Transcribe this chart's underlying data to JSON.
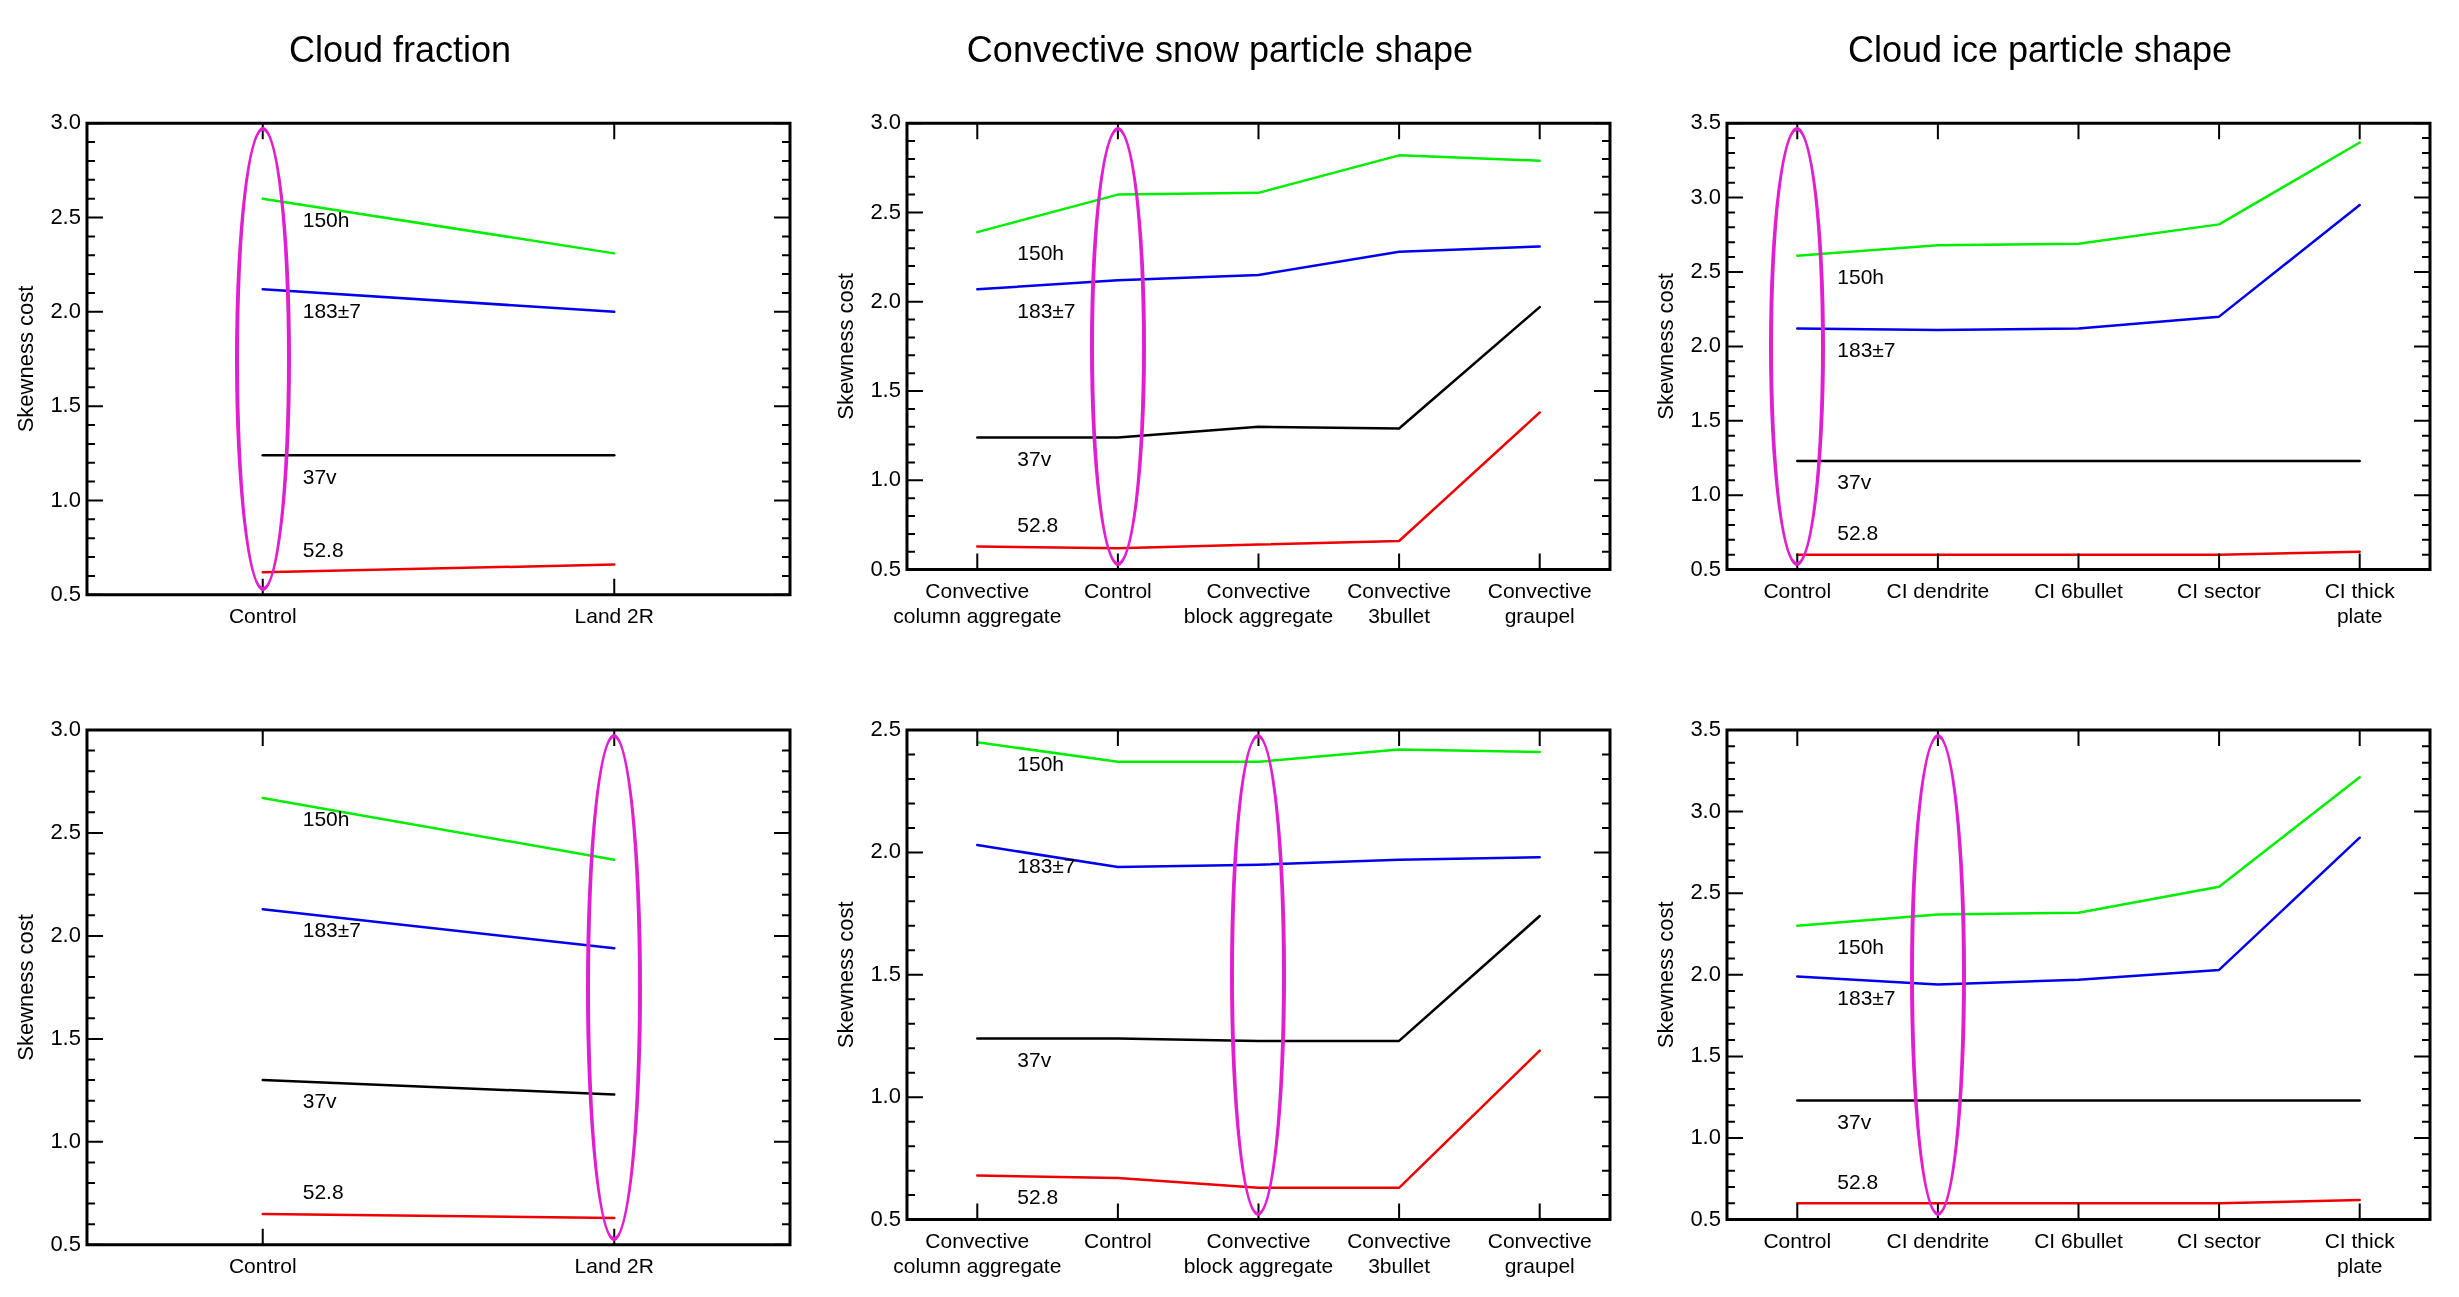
{
  "chart_data": [
    {
      "type": "line",
      "title": "Cloud fraction",
      "ylabel": "Skewness cost",
      "categories": [
        "Control",
        "Land 2R"
      ],
      "ylim": [
        0.5,
        3.0
      ],
      "yticks": [
        0.5,
        {
          "value": 0.6,
          "label": null
        },
        {
          "value": 0.7,
          "label": null
        },
        {
          "value": 0.8,
          "label": null
        },
        {
          "value": 0.9,
          "label": null
        },
        "1.0",
        {
          "value": 1.1,
          "label": null
        },
        {
          "value": 1.2,
          "label": null
        },
        {
          "value": 1.3,
          "label": null
        },
        {
          "value": 1.4,
          "label": null
        },
        1.5,
        {
          "value": 1.6,
          "label": null
        },
        {
          "value": 1.7,
          "label": null
        },
        {
          "value": 1.8,
          "label": null
        },
        {
          "value": 1.9,
          "label": null
        },
        "2.0",
        {
          "value": 2.1,
          "label": null
        },
        {
          "value": 2.2,
          "label": null
        },
        {
          "value": 2.3,
          "label": null
        },
        {
          "value": 2.4,
          "label": null
        },
        2.5,
        {
          "value": 2.6,
          "label": null
        },
        {
          "value": 2.7,
          "label": null
        },
        {
          "value": 2.8,
          "label": null
        },
        {
          "value": 2.9,
          "label": null
        },
        "3.0"
      ],
      "grid": false,
      "legend": false,
      "marker": "none",
      "line_style": "solid",
      "series": [
        {
          "name": "150h",
          "color": "#00ee00",
          "values": [
            2.6,
            2.31
          ]
        },
        {
          "name": "183±7",
          "color": "#0000ee",
          "values": [
            2.12,
            2.0
          ]
        },
        {
          "name": "37v",
          "color": "#000000",
          "values": [
            1.24,
            1.24
          ]
        },
        {
          "name": "52.8",
          "color": "#ee0000",
          "values": [
            0.62,
            0.66
          ]
        }
      ]
    },
    {
      "type": "line",
      "title": "Convective snow particle shape",
      "ylabel": "Skewness cost",
      "categories": [
        "Convective\ncolumn aggregate",
        "Control",
        "Convective\nblock aggregate",
        "Convective\n3bullet",
        "Convective\ngraupel"
      ],
      "ylim": [
        0.5,
        3.0
      ],
      "yticks": [
        0.5,
        {
          "value": 0.6,
          "label": null
        },
        {
          "value": 0.7,
          "label": null
        },
        {
          "value": 0.8,
          "label": null
        },
        {
          "value": 0.9,
          "label": null
        },
        "1.0",
        {
          "value": 1.1,
          "label": null
        },
        {
          "value": 1.2,
          "label": null
        },
        {
          "value": 1.3,
          "label": null
        },
        {
          "value": 1.4,
          "label": null
        },
        1.5,
        {
          "value": 1.6,
          "label": null
        },
        {
          "value": 1.7,
          "label": null
        },
        {
          "value": 1.8,
          "label": null
        },
        {
          "value": 1.9,
          "label": null
        },
        "2.0",
        {
          "value": 2.1,
          "label": null
        },
        {
          "value": 2.2,
          "label": null
        },
        {
          "value": 2.3,
          "label": null
        },
        {
          "value": 2.4,
          "label": null
        },
        2.5,
        {
          "value": 2.6,
          "label": null
        },
        {
          "value": 2.7,
          "label": null
        },
        {
          "value": 2.8,
          "label": null
        },
        {
          "value": 2.9,
          "label": null
        },
        "3.0"
      ],
      "grid": false,
      "legend": false,
      "marker": "none",
      "line_style": "solid",
      "series": [
        {
          "name": "150h",
          "color": "#00ee00",
          "values": [
            2.39,
            2.6,
            2.61,
            2.82,
            2.79
          ]
        },
        {
          "name": "183±7",
          "color": "#0000ee",
          "values": [
            2.07,
            2.12,
            2.15,
            2.28,
            2.31
          ]
        },
        {
          "name": "37v",
          "color": "#000000",
          "values": [
            1.24,
            1.24,
            1.3,
            1.29,
            1.97
          ]
        },
        {
          "name": "52.8",
          "color": "#ee0000",
          "values": [
            0.63,
            0.62,
            0.64,
            0.66,
            1.38
          ]
        }
      ]
    },
    {
      "type": "line",
      "title": "Cloud ice particle shape",
      "ylabel": "Skewness cost",
      "categories": [
        "Control",
        "CI dendrite",
        "CI 6bullet",
        "CI sector",
        "CI thick\nplate"
      ],
      "ylim": [
        0.5,
        3.5
      ],
      "yticks": [
        0.5,
        {
          "value": 0.6,
          "label": null
        },
        {
          "value": 0.7,
          "label": null
        },
        {
          "value": 0.8,
          "label": null
        },
        {
          "value": 0.9,
          "label": null
        },
        "1.0",
        {
          "value": 1.1,
          "label": null
        },
        {
          "value": 1.2,
          "label": null
        },
        {
          "value": 1.3,
          "label": null
        },
        {
          "value": 1.4,
          "label": null
        },
        1.5,
        {
          "value": 1.6,
          "label": null
        },
        {
          "value": 1.7,
          "label": null
        },
        {
          "value": 1.8,
          "label": null
        },
        {
          "value": 1.9,
          "label": null
        },
        "2.0",
        {
          "value": 2.1,
          "label": null
        },
        {
          "value": 2.2,
          "label": null
        },
        {
          "value": 2.3,
          "label": null
        },
        {
          "value": 2.4,
          "label": null
        },
        2.5,
        {
          "value": 2.6,
          "label": null
        },
        {
          "value": 2.7,
          "label": null
        },
        {
          "value": 2.8,
          "label": null
        },
        {
          "value": 2.9,
          "label": null
        },
        "3.0",
        {
          "value": 3.1,
          "label": null
        },
        {
          "value": 3.2,
          "label": null
        },
        {
          "value": 3.3,
          "label": null
        },
        {
          "value": 3.4,
          "label": null
        },
        3.5
      ],
      "grid": false,
      "legend": false,
      "marker": "none",
      "line_style": "solid",
      "series": [
        {
          "name": "150h",
          "color": "#00ee00",
          "values": [
            2.61,
            2.68,
            2.69,
            2.82,
            3.37
          ]
        },
        {
          "name": "183±7",
          "color": "#0000ee",
          "values": [
            2.12,
            2.11,
            2.12,
            2.2,
            2.95
          ]
        },
        {
          "name": "37v",
          "color": "#000000",
          "values": [
            1.23,
            1.23,
            1.23,
            1.23,
            1.23
          ]
        },
        {
          "name": "52.8",
          "color": "#ee0000",
          "values": [
            0.6,
            0.6,
            0.6,
            0.6,
            0.62
          ]
        }
      ]
    },
    {
      "type": "line",
      "ylabel": "Skewness cost",
      "categories": [
        "Control",
        "Land 2R"
      ],
      "ylim": [
        0.5,
        3.0
      ],
      "yticks": [
        0.5,
        {
          "value": 0.6,
          "label": null
        },
        {
          "value": 0.7,
          "label": null
        },
        {
          "value": 0.8,
          "label": null
        },
        {
          "value": 0.9,
          "label": null
        },
        "1.0",
        {
          "value": 1.1,
          "label": null
        },
        {
          "value": 1.2,
          "label": null
        },
        {
          "value": 1.3,
          "label": null
        },
        {
          "value": 1.4,
          "label": null
        },
        1.5,
        {
          "value": 1.6,
          "label": null
        },
        {
          "value": 1.7,
          "label": null
        },
        {
          "value": 1.8,
          "label": null
        },
        {
          "value": 1.9,
          "label": null
        },
        "2.0",
        {
          "value": 2.1,
          "label": null
        },
        {
          "value": 2.2,
          "label": null
        },
        {
          "value": 2.3,
          "label": null
        },
        {
          "value": 2.4,
          "label": null
        },
        2.5,
        {
          "value": 2.6,
          "label": null
        },
        {
          "value": 2.7,
          "label": null
        },
        {
          "value": 2.8,
          "label": null
        },
        {
          "value": 2.9,
          "label": null
        },
        "3.0"
      ],
      "grid": false,
      "legend": false,
      "marker": "none",
      "line_style": "solid",
      "series": [
        {
          "name": "150h",
          "color": "#00ee00",
          "values": [
            2.67,
            2.37
          ]
        },
        {
          "name": "183±7",
          "color": "#0000ee",
          "values": [
            2.13,
            1.94
          ]
        },
        {
          "name": "37v",
          "color": "#000000",
          "values": [
            1.3,
            1.23
          ]
        },
        {
          "name": "52.8",
          "color": "#ee0000",
          "values": [
            0.65,
            0.63
          ]
        }
      ]
    },
    {
      "type": "line",
      "ylabel": "Skewness cost",
      "categories": [
        "Convective\ncolumn aggregate",
        "Control",
        "Convective\nblock aggregate",
        "Convective\n3bullet",
        "Convective\ngraupel"
      ],
      "ylim": [
        0.5,
        2.5
      ],
      "yticks": [
        0.5,
        {
          "value": 0.6,
          "label": null
        },
        {
          "value": 0.7,
          "label": null
        },
        {
          "value": 0.8,
          "label": null
        },
        {
          "value": 0.9,
          "label": null
        },
        "1.0",
        {
          "value": 1.1,
          "label": null
        },
        {
          "value": 1.2,
          "label": null
        },
        {
          "value": 1.3,
          "label": null
        },
        {
          "value": 1.4,
          "label": null
        },
        1.5,
        {
          "value": 1.6,
          "label": null
        },
        {
          "value": 1.7,
          "label": null
        },
        {
          "value": 1.8,
          "label": null
        },
        {
          "value": 1.9,
          "label": null
        },
        "2.0",
        {
          "value": 2.1,
          "label": null
        },
        {
          "value": 2.2,
          "label": null
        },
        {
          "value": 2.3,
          "label": null
        },
        {
          "value": 2.4,
          "label": null
        },
        2.5
      ],
      "grid": false,
      "legend": false,
      "marker": "none",
      "line_style": "solid",
      "series": [
        {
          "name": "150h",
          "color": "#00ee00",
          "values": [
            2.45,
            2.37,
            2.37,
            2.42,
            2.41
          ]
        },
        {
          "name": "183±7",
          "color": "#0000ee",
          "values": [
            2.03,
            1.94,
            1.95,
            1.97,
            1.98
          ]
        },
        {
          "name": "37v",
          "color": "#000000",
          "values": [
            1.24,
            1.24,
            1.23,
            1.23,
            1.74
          ]
        },
        {
          "name": "52.8",
          "color": "#ee0000",
          "values": [
            0.68,
            0.67,
            0.63,
            0.63,
            1.19
          ]
        }
      ]
    },
    {
      "type": "line",
      "ylabel": "Skewness cost",
      "categories": [
        "Control",
        "CI dendrite",
        "CI 6bullet",
        "CI sector",
        "CI thick\nplate"
      ],
      "ylim": [
        0.5,
        3.5
      ],
      "yticks": [
        0.5,
        {
          "value": 0.6,
          "label": null
        },
        {
          "value": 0.7,
          "label": null
        },
        {
          "value": 0.8,
          "label": null
        },
        {
          "value": 0.9,
          "label": null
        },
        "1.0",
        {
          "value": 1.1,
          "label": null
        },
        {
          "value": 1.2,
          "label": null
        },
        {
          "value": 1.3,
          "label": null
        },
        {
          "value": 1.4,
          "label": null
        },
        1.5,
        {
          "value": 1.6,
          "label": null
        },
        {
          "value": 1.7,
          "label": null
        },
        {
          "value": 1.8,
          "label": null
        },
        {
          "value": 1.9,
          "label": null
        },
        "2.0",
        {
          "value": 2.1,
          "label": null
        },
        {
          "value": 2.2,
          "label": null
        },
        {
          "value": 2.3,
          "label": null
        },
        {
          "value": 2.4,
          "label": null
        },
        2.5,
        {
          "value": 2.6,
          "label": null
        },
        {
          "value": 2.7,
          "label": null
        },
        {
          "value": 2.8,
          "label": null
        },
        {
          "value": 2.9,
          "label": null
        },
        "3.0",
        {
          "value": 3.1,
          "label": null
        },
        {
          "value": 3.2,
          "label": null
        },
        {
          "value": 3.3,
          "label": null
        },
        {
          "value": 3.4,
          "label": null
        },
        3.5
      ],
      "grid": false,
      "legend": false,
      "marker": "none",
      "line_style": "solid",
      "series": [
        {
          "name": "150h",
          "color": "#00ee00",
          "values": [
            2.3,
            2.37,
            2.38,
            2.54,
            3.21
          ]
        },
        {
          "name": "183±7",
          "color": "#0000ee",
          "values": [
            1.99,
            1.94,
            1.97,
            2.03,
            2.84
          ]
        },
        {
          "name": "37v",
          "color": "#000000",
          "values": [
            1.23,
            1.23,
            1.23,
            1.23,
            1.23
          ]
        },
        {
          "name": "52.8",
          "color": "#ee0000",
          "values": [
            0.6,
            0.6,
            0.6,
            0.6,
            0.62
          ]
        }
      ]
    }
  ]
}
